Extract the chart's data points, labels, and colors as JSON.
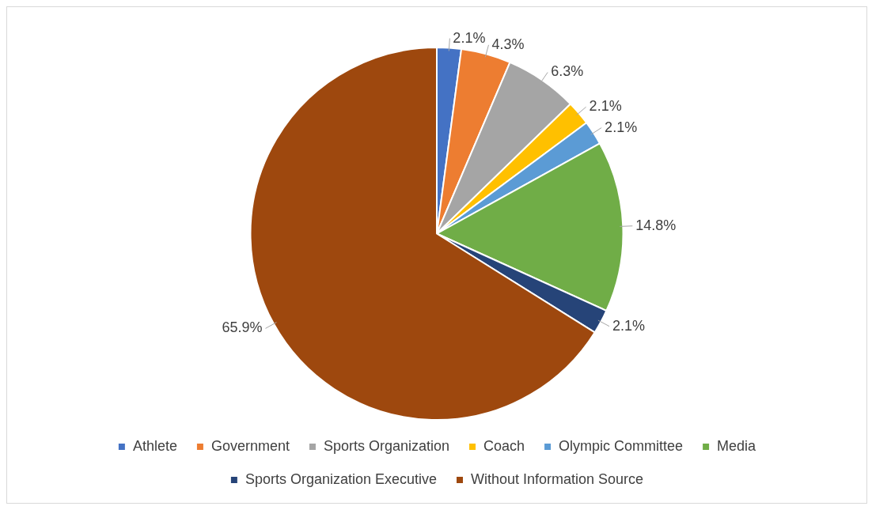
{
  "chart_data": {
    "type": "pie",
    "categories": [
      "Athlete",
      "Government",
      "Sports Organization",
      "Coach",
      "Olympic Committee",
      "Media",
      "Sports Organization Executive",
      "Without Information Source"
    ],
    "values": [
      2.1,
      4.3,
      6.3,
      2.1,
      2.1,
      14.8,
      2.1,
      65.9
    ],
    "colors": [
      "#4472c4",
      "#ed7d31",
      "#a5a5a5",
      "#ffc000",
      "#5b9bd5",
      "#70ad47",
      "#264478",
      "#9e480e"
    ],
    "value_labels": [
      "2.1%",
      "4.3%",
      "6.3%",
      "2.1%",
      "2.1%",
      "14.8%",
      "2.1%",
      "65.9%"
    ],
    "legend": "bottom"
  }
}
